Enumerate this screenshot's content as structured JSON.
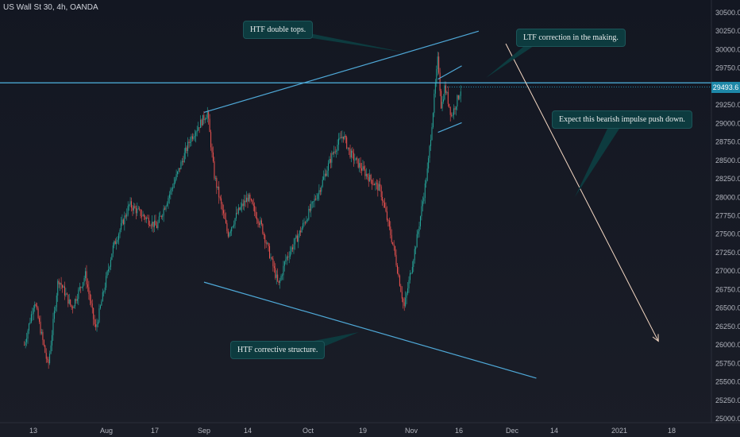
{
  "header": {
    "title": "US Wall St 30, 4h, OANDA"
  },
  "annotations": {
    "htf_double_tops": "HTF double tops.",
    "ltf_correction": "LTF correction in the making.",
    "bearish_impulse": "Expect this bearish impulse push down.",
    "htf_corrective": "HTF corrective structure."
  },
  "colors": {
    "background": "#131722",
    "up_candle": "#26a69a",
    "down_candle": "#ef5350",
    "trendline": "#4fa9d8",
    "horizontal_line": "#4fb3e0",
    "arrow": "#f6d9c4",
    "callout_bg": "#0d3b3f",
    "price_tag_bg": "#1e88a8"
  },
  "chart_data": {
    "type": "candlestick",
    "symbol": "US Wall St 30",
    "timeframe": "4h",
    "source": "OANDA",
    "x_ticks": [
      "13",
      "Aug",
      "17",
      "Sep",
      "14",
      "Oct",
      "19",
      "Nov",
      "16",
      "Dec",
      "14",
      "2021",
      "18"
    ],
    "y_ticks": [
      30500,
      30250,
      30000,
      29750,
      29500,
      29250,
      29000,
      28750,
      28500,
      28250,
      28000,
      27750,
      27500,
      27250,
      27000,
      26750,
      26500,
      26250,
      26000,
      25750,
      25500,
      25250,
      25000
    ],
    "ylim": [
      25000,
      30500
    ],
    "current_price": "29493.6",
    "horizontal_level": 29550,
    "price_path_keypoints": [
      {
        "date": "2020-07-10",
        "price": 26000
      },
      {
        "date": "2020-07-13",
        "price": 26600
      },
      {
        "date": "2020-07-17",
        "price": 25700
      },
      {
        "date": "2020-07-20",
        "price": 26900
      },
      {
        "date": "2020-07-24",
        "price": 26500
      },
      {
        "date": "2020-07-28",
        "price": 26950
      },
      {
        "date": "2020-07-31",
        "price": 26200
      },
      {
        "date": "2020-08-05",
        "price": 27300
      },
      {
        "date": "2020-08-10",
        "price": 27900
      },
      {
        "date": "2020-08-14",
        "price": 27750
      },
      {
        "date": "2020-08-18",
        "price": 27600
      },
      {
        "date": "2020-08-24",
        "price": 28300
      },
      {
        "date": "2020-08-28",
        "price": 28800
      },
      {
        "date": "2020-09-02",
        "price": 29150
      },
      {
        "date": "2020-09-04",
        "price": 28300
      },
      {
        "date": "2020-09-08",
        "price": 27500
      },
      {
        "date": "2020-09-11",
        "price": 27800
      },
      {
        "date": "2020-09-14",
        "price": 28000
      },
      {
        "date": "2020-09-18",
        "price": 27600
      },
      {
        "date": "2020-09-23",
        "price": 26800
      },
      {
        "date": "2020-09-25",
        "price": 27150
      },
      {
        "date": "2020-09-29",
        "price": 27500
      },
      {
        "date": "2020-10-05",
        "price": 28100
      },
      {
        "date": "2020-10-09",
        "price": 28600
      },
      {
        "date": "2020-10-12",
        "price": 28850
      },
      {
        "date": "2020-10-14",
        "price": 28600
      },
      {
        "date": "2020-10-19",
        "price": 28300
      },
      {
        "date": "2020-10-23",
        "price": 28100
      },
      {
        "date": "2020-10-27",
        "price": 27300
      },
      {
        "date": "2020-10-30",
        "price": 26500
      },
      {
        "date": "2020-11-03",
        "price": 27500
      },
      {
        "date": "2020-11-06",
        "price": 28400
      },
      {
        "date": "2020-11-09",
        "price": 29900
      },
      {
        "date": "2020-11-10",
        "price": 29200
      },
      {
        "date": "2020-11-11",
        "price": 29500
      },
      {
        "date": "2020-11-13",
        "price": 29100
      },
      {
        "date": "2020-11-16",
        "price": 29500
      }
    ],
    "drawings": [
      {
        "name": "htf-upper-channel-line",
        "from": {
          "date": "2020-09-01",
          "price": 29150
        },
        "to": {
          "date": "2020-11-21",
          "price": 30250
        }
      },
      {
        "name": "htf-lower-channel-line",
        "from": {
          "date": "2020-09-01",
          "price": 26850
        },
        "to": {
          "date": "2020-12-08",
          "price": 25550
        }
      },
      {
        "name": "ltf-upper-channel-line",
        "from": {
          "date": "2020-11-09",
          "price": 29600
        },
        "to": {
          "date": "2020-11-16",
          "price": 29780
        }
      },
      {
        "name": "ltf-lower-channel-line",
        "from": {
          "date": "2020-11-09",
          "price": 28880
        },
        "to": {
          "date": "2020-11-16",
          "price": 29010
        }
      },
      {
        "name": "projection-arrow",
        "from": {
          "date": "2020-11-29",
          "price": 30080
        },
        "to": {
          "date": "2021-01-13",
          "price": 26050
        }
      }
    ]
  }
}
